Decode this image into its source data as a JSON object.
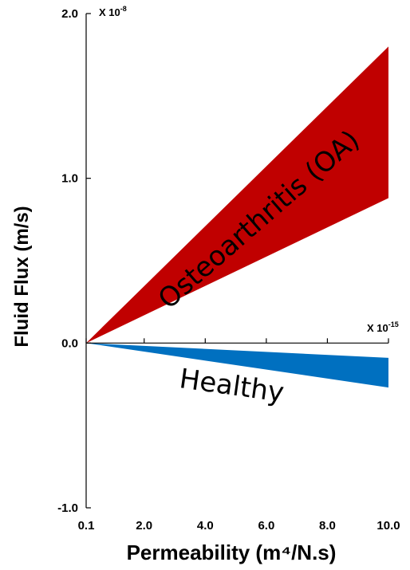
{
  "chart_data": {
    "type": "area",
    "xlabel": "Permeability (m⁴/N.s)",
    "ylabel": "Fluid Flux (m/s)",
    "x_multiplier": "X 10",
    "x_multiplier_exp": "-15",
    "y_multiplier": "X 10",
    "y_multiplier_exp": "-8",
    "xlim": [
      0.1,
      10.0
    ],
    "ylim": [
      -1.0,
      2.0
    ],
    "x_ticks": [
      "0.1",
      "2.0",
      "4.0",
      "6.0",
      "8.0",
      "10.0"
    ],
    "x_tick_values": [
      0.1,
      2.0,
      4.0,
      6.0,
      8.0,
      10.0
    ],
    "y_ticks": [
      "2.0",
      "1.0",
      "0.0",
      "-1.0"
    ],
    "y_tick_values": [
      2.0,
      1.0,
      0.0,
      -1.0
    ],
    "grid": false,
    "series": [
      {
        "name": "Osteoarthritis (OA)",
        "color": "#c00000",
        "x": [
          0.1,
          10.0
        ],
        "upper": [
          0.0,
          1.8
        ],
        "lower": [
          0.0,
          0.88
        ]
      },
      {
        "name": "Healthy",
        "color": "#0070c0",
        "x": [
          0.1,
          10.0
        ],
        "upper": [
          0.0,
          -0.09
        ],
        "lower": [
          0.0,
          -0.27
        ]
      }
    ]
  }
}
